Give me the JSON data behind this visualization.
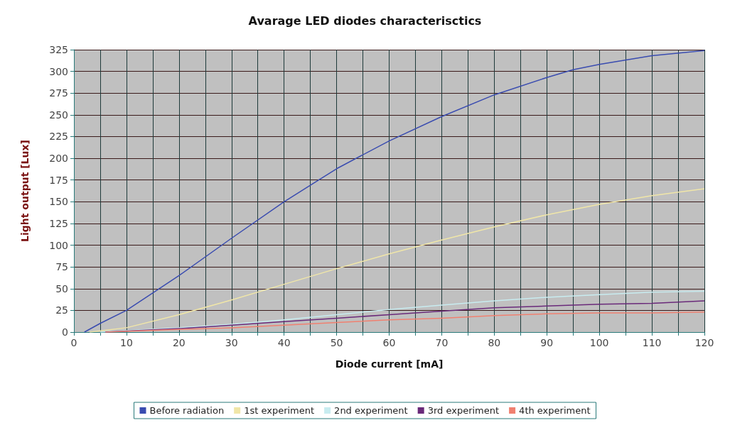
{
  "chart_data": {
    "type": "line",
    "title": "Avarage LED diodes characterisctics",
    "xlabel": "Diode current [mA]",
    "ylabel": "Light output [Lux]",
    "xlim": [
      0,
      120
    ],
    "ylim": [
      0,
      325
    ],
    "xticks": [
      0,
      {
        "value": 5,
        "label": null
      },
      10,
      {
        "value": 15,
        "label": null
      },
      20,
      {
        "value": 25,
        "label": null
      },
      30,
      {
        "value": 35,
        "label": null
      },
      40,
      {
        "value": 45,
        "label": null
      },
      50,
      {
        "value": 55,
        "label": null
      },
      60,
      {
        "value": 65,
        "label": null
      },
      70,
      {
        "value": 75,
        "label": null
      },
      80,
      {
        "value": 85,
        "label": null
      },
      90,
      {
        "value": 95,
        "label": null
      },
      100,
      {
        "value": 105,
        "label": null
      },
      110,
      {
        "value": 115,
        "label": null
      },
      120
    ],
    "yticks": [
      0,
      25,
      50,
      75,
      100,
      125,
      150,
      175,
      200,
      225,
      250,
      275,
      300,
      325
    ],
    "grid": true,
    "legend": "bottom",
    "marker": "none",
    "line_style": "solid",
    "series": [
      {
        "name": "Before radiation",
        "color": "#3a4cb0",
        "x": [
          2,
          5,
          10,
          20,
          30,
          40,
          50,
          60,
          70,
          80,
          90,
          95,
          100,
          110,
          120
        ],
        "values": [
          0,
          10,
          25,
          65,
          108,
          150,
          188,
          220,
          248,
          273,
          293,
          302,
          308,
          318,
          324
        ]
      },
      {
        "name": "1st experiment",
        "color": "#f0e6a8",
        "x": [
          3,
          10,
          20,
          30,
          40,
          50,
          60,
          70,
          80,
          90,
          100,
          110,
          120
        ],
        "values": [
          0,
          5,
          20,
          37,
          55,
          73,
          90,
          106,
          121,
          135,
          147,
          157,
          165
        ]
      },
      {
        "name": "2nd experiment",
        "color": "#c8ecf0",
        "x": [
          5,
          20,
          30,
          40,
          50,
          60,
          70,
          80,
          90,
          100,
          110,
          120
        ],
        "values": [
          0,
          5,
          9,
          14,
          20,
          26,
          31,
          36,
          40,
          43,
          46,
          47
        ]
      },
      {
        "name": "3rd experiment",
        "color": "#6a2a7a",
        "x": [
          6,
          20,
          30,
          40,
          50,
          60,
          70,
          80,
          90,
          100,
          110,
          120
        ],
        "values": [
          0,
          4,
          8,
          12,
          16,
          20,
          24,
          28,
          30,
          32,
          33,
          36
        ]
      },
      {
        "name": "4th experiment",
        "color": "#f08070",
        "x": [
          6,
          20,
          30,
          40,
          50,
          60,
          70,
          80,
          90,
          100,
          110,
          120
        ],
        "values": [
          0,
          3,
          5,
          8,
          11,
          14,
          16,
          19,
          21,
          22,
          22,
          23
        ]
      }
    ]
  }
}
